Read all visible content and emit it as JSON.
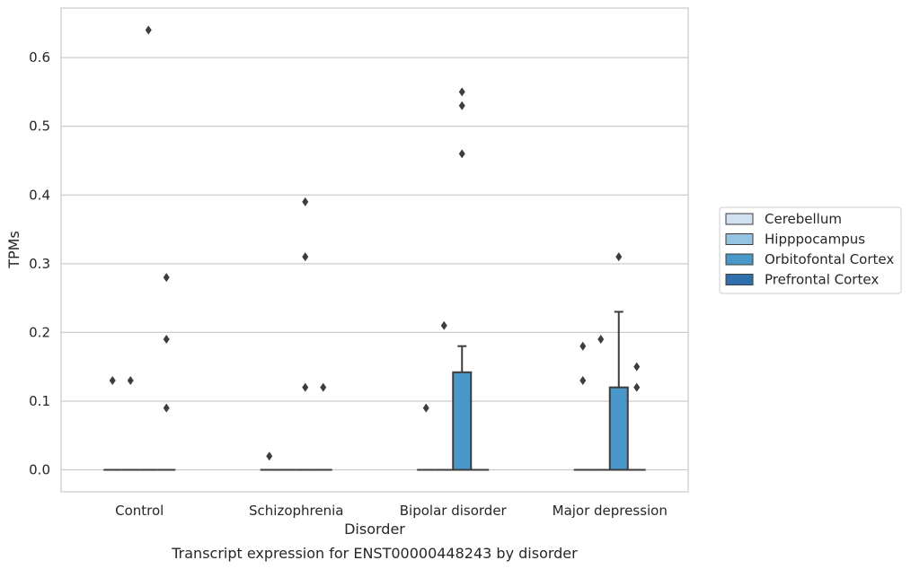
{
  "chart_data": {
    "type": "box",
    "title": "",
    "caption": "Transcript expression for ENST00000448243 by disorder",
    "xlabel": "Disorder",
    "ylabel": "TPMs",
    "ylim": [
      -0.032,
      0.672
    ],
    "yticks": [
      "0.0",
      "0.1",
      "0.2",
      "0.3",
      "0.4",
      "0.5",
      "0.6"
    ],
    "grid": "horizontal",
    "legend_position": "right",
    "categories": [
      "Control",
      "Schizophrenia",
      "Bipolar disorder",
      "Major depression"
    ],
    "series": [
      {
        "name": "Cerebellum",
        "color": "#d0e1f2",
        "boxes": [
          {
            "category": "Control",
            "q1": 0,
            "median": 0,
            "q3": 0,
            "whisker_low": 0,
            "whisker_high": 0,
            "outliers": [
              0.13
            ]
          },
          {
            "category": "Schizophrenia",
            "q1": 0,
            "median": 0,
            "q3": 0,
            "whisker_low": 0,
            "whisker_high": 0,
            "outliers": [
              0.02
            ]
          },
          {
            "category": "Bipolar disorder",
            "q1": 0,
            "median": 0,
            "q3": 0,
            "whisker_low": 0,
            "whisker_high": 0,
            "outliers": [
              0.09
            ]
          },
          {
            "category": "Major depression",
            "q1": 0,
            "median": 0,
            "q3": 0,
            "whisker_low": 0,
            "whisker_high": 0,
            "outliers": [
              0.13,
              0.18
            ]
          }
        ]
      },
      {
        "name": "Hipppocampus",
        "color": "#94c4df",
        "boxes": [
          {
            "category": "Control",
            "q1": 0,
            "median": 0,
            "q3": 0,
            "whisker_low": 0,
            "whisker_high": 0,
            "outliers": [
              0.13
            ]
          },
          {
            "category": "Schizophrenia",
            "q1": 0,
            "median": 0,
            "q3": 0,
            "whisker_low": 0,
            "whisker_high": 0,
            "outliers": []
          },
          {
            "category": "Bipolar disorder",
            "q1": 0,
            "median": 0,
            "q3": 0,
            "whisker_low": 0,
            "whisker_high": 0,
            "outliers": [
              0.21
            ]
          },
          {
            "category": "Major depression",
            "q1": 0,
            "median": 0,
            "q3": 0,
            "whisker_low": 0,
            "whisker_high": 0,
            "outliers": [
              0.19
            ]
          }
        ]
      },
      {
        "name": "Orbitofontal Cortex",
        "color": "#4a98c9",
        "boxes": [
          {
            "category": "Control",
            "q1": 0,
            "median": 0,
            "q3": 0,
            "whisker_low": 0,
            "whisker_high": 0,
            "outliers": [
              0.64
            ]
          },
          {
            "category": "Schizophrenia",
            "q1": 0,
            "median": 0,
            "q3": 0,
            "whisker_low": 0,
            "whisker_high": 0,
            "outliers": [
              0.12,
              0.31,
              0.39
            ]
          },
          {
            "category": "Bipolar disorder",
            "q1": 0,
            "median": 0,
            "q3": 0.142,
            "whisker_low": 0,
            "whisker_high": 0.18,
            "outliers": [
              0.46,
              0.53,
              0.55
            ]
          },
          {
            "category": "Major depression",
            "q1": 0,
            "median": 0,
            "q3": 0.12,
            "whisker_low": 0,
            "whisker_high": 0.23,
            "outliers": [
              0.31
            ]
          }
        ]
      },
      {
        "name": "Prefrontal Cortex",
        "color": "#2e6fac",
        "boxes": [
          {
            "category": "Control",
            "q1": 0,
            "median": 0,
            "q3": 0,
            "whisker_low": 0,
            "whisker_high": 0,
            "outliers": [
              0.09,
              0.19,
              0.28
            ]
          },
          {
            "category": "Schizophrenia",
            "q1": 0,
            "median": 0,
            "q3": 0,
            "whisker_low": 0,
            "whisker_high": 0,
            "outliers": [
              0.12
            ]
          },
          {
            "category": "Bipolar disorder",
            "q1": 0,
            "median": 0,
            "q3": 0,
            "whisker_low": 0,
            "whisker_high": 0,
            "outliers": []
          },
          {
            "category": "Major depression",
            "q1": 0,
            "median": 0,
            "q3": 0,
            "whisker_low": 0,
            "whisker_high": 0,
            "outliers": [
              0.12,
              0.15
            ]
          }
        ]
      }
    ]
  }
}
